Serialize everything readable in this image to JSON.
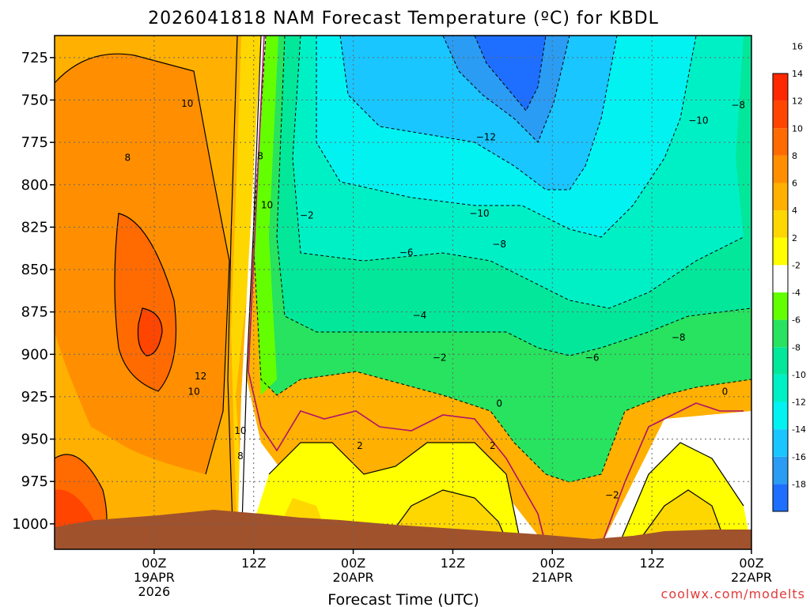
{
  "colors": {
    "bands": [
      "#1e6fff",
      "#2a9cf3",
      "#19c6ff",
      "#02f2f2",
      "#00f0c6",
      "#03e79a",
      "#27e35f",
      "#63ff00",
      "#ffffff",
      "#ffff00",
      "#ffd700",
      "#ffb000",
      "#ff8f00",
      "#ff6b00",
      "#ff4500",
      "#ff2800"
    ],
    "ground": "#a0522d",
    "freezing_line": "#b0106e"
  },
  "chart_data": {
    "type": "heatmap",
    "title": "2026041818 NAM Forecast Temperature (ºC) for KBDL",
    "xlabel": "Forecast Time (UTC)",
    "ylabel": "",
    "y_axis": {
      "reversed": true,
      "range": [
        1015,
        712
      ],
      "ticks": [
        "725",
        "750",
        "775",
        "800",
        "825",
        "850",
        "875",
        "900",
        "925",
        "950",
        "975",
        "1000"
      ]
    },
    "x_axis": {
      "range": [
        -15,
        90
      ],
      "ticks": [
        {
          "hour": 0,
          "l1": "00Z",
          "l2": "19APR",
          "l3": "2026"
        },
        {
          "hour": 15,
          "l1": "12Z",
          "l2": "",
          "l3": ""
        },
        {
          "hour": 30,
          "l1": "00Z",
          "l2": "20APR",
          "l3": ""
        },
        {
          "hour": 45,
          "l1": "12Z",
          "l2": "",
          "l3": ""
        },
        {
          "hour": 60,
          "l1": "00Z",
          "l2": "21APR",
          "l3": ""
        },
        {
          "hour": 75,
          "l1": "12Z",
          "l2": "",
          "l3": ""
        },
        {
          "hour": 90,
          "l1": "00Z",
          "l2": "22APR",
          "l3": ""
        }
      ]
    },
    "grid": true,
    "colorbar": {
      "levels": [
        "-18",
        "-16",
        "-14",
        "-12",
        "-10",
        "-8",
        "-6",
        "-4",
        "-2",
        "2",
        "4",
        "6",
        "8",
        "10",
        "12",
        "14",
        "16"
      ]
    },
    "contour_labels": [
      {
        "text": "10",
        "hour": 5,
        "p": 752
      },
      {
        "text": "8",
        "hour": -4,
        "p": 784
      },
      {
        "text": "8",
        "hour": 16,
        "p": 783
      },
      {
        "text": "10",
        "hour": 17,
        "p": 812
      },
      {
        "text": "−2",
        "hour": 23,
        "p": 818
      },
      {
        "text": "−12",
        "hour": 50,
        "p": 772
      },
      {
        "text": "−10",
        "hour": 49,
        "p": 817
      },
      {
        "text": "−6",
        "hour": 38,
        "p": 840
      },
      {
        "text": "−8",
        "hour": 52,
        "p": 835
      },
      {
        "text": "−4",
        "hour": 40,
        "p": 877
      },
      {
        "text": "−2",
        "hour": 43,
        "p": 902
      },
      {
        "text": "−6",
        "hour": 66,
        "p": 902
      },
      {
        "text": "−8",
        "hour": 79,
        "p": 890
      },
      {
        "text": "−10",
        "hour": 82,
        "p": 762
      },
      {
        "text": "−8",
        "hour": 88,
        "p": 753
      },
      {
        "text": "12",
        "hour": 7,
        "p": 913
      },
      {
        "text": "10",
        "hour": 6,
        "p": 922
      },
      {
        "text": "10",
        "hour": 13,
        "p": 945
      },
      {
        "text": "8",
        "hour": 13,
        "p": 960
      },
      {
        "text": "0",
        "hour": 52,
        "p": 929
      },
      {
        "text": "0",
        "hour": 86,
        "p": 922
      },
      {
        "text": "2",
        "hour": 31,
        "p": 954
      },
      {
        "text": "2",
        "hour": 51,
        "p": 954
      },
      {
        "text": "−2",
        "hour": 69,
        "p": 983
      }
    ]
  },
  "credit": "coolwx.com/modelts"
}
